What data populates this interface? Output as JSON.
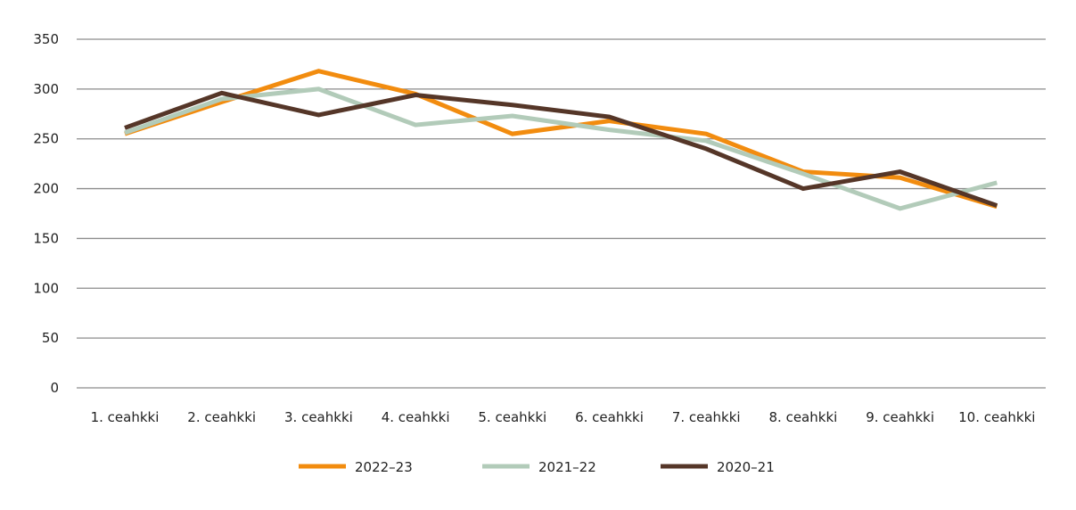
{
  "chart_data": {
    "type": "line",
    "title": "",
    "xlabel": "",
    "ylabel": "",
    "ylim": [
      0,
      350
    ],
    "yticks": [
      0,
      50,
      100,
      150,
      200,
      250,
      300,
      350
    ],
    "grid": true,
    "legend_position": "bottom",
    "categories": [
      "1. ceahkki",
      "2. ceahkki",
      "3. ceahkki",
      "4. ceahkki",
      "5. ceahkki",
      "6. ceahkki",
      "7. ceahkki",
      "8. ceahkki",
      "9. ceahkki",
      "10. ceahkki"
    ],
    "series": [
      {
        "name": "2022–23",
        "color": "#f28c0f",
        "values": [
          255,
          287,
          318,
          295,
          255,
          268,
          255,
          217,
          211,
          182
        ]
      },
      {
        "name": "2021–22",
        "color": "#b2cbb9",
        "values": [
          256,
          290,
          300,
          264,
          273,
          259,
          248,
          215,
          180,
          206
        ]
      },
      {
        "name": "2020–21",
        "color": "#553628",
        "values": [
          261,
          296,
          274,
          294,
          284,
          272,
          240,
          200,
          217,
          183
        ]
      }
    ]
  }
}
